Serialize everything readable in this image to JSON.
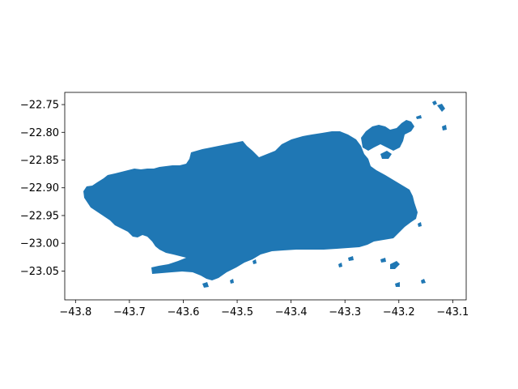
{
  "map": {
    "fill_color": "#1f77b4",
    "background": "#ffffff",
    "axes": {
      "x_ticks": [
        "−43.8",
        "−43.7",
        "−43.6",
        "−43.5",
        "−43.4",
        "−43.3",
        "−43.2",
        "−43.1"
      ],
      "y_ticks": [
        "−22.75",
        "−22.80",
        "−22.85",
        "−22.90",
        "−22.95",
        "−23.00",
        "−23.05"
      ],
      "x_tick_values": [
        -43.8,
        -43.7,
        -43.6,
        -43.5,
        -43.4,
        -43.3,
        -43.2,
        -43.1
      ],
      "y_tick_values": [
        -22.75,
        -22.8,
        -22.85,
        -22.9,
        -22.95,
        -23.0,
        -23.05
      ],
      "xlim": [
        -43.82,
        -43.075
      ],
      "ylim": [
        -23.102,
        -22.728
      ]
    }
  }
}
